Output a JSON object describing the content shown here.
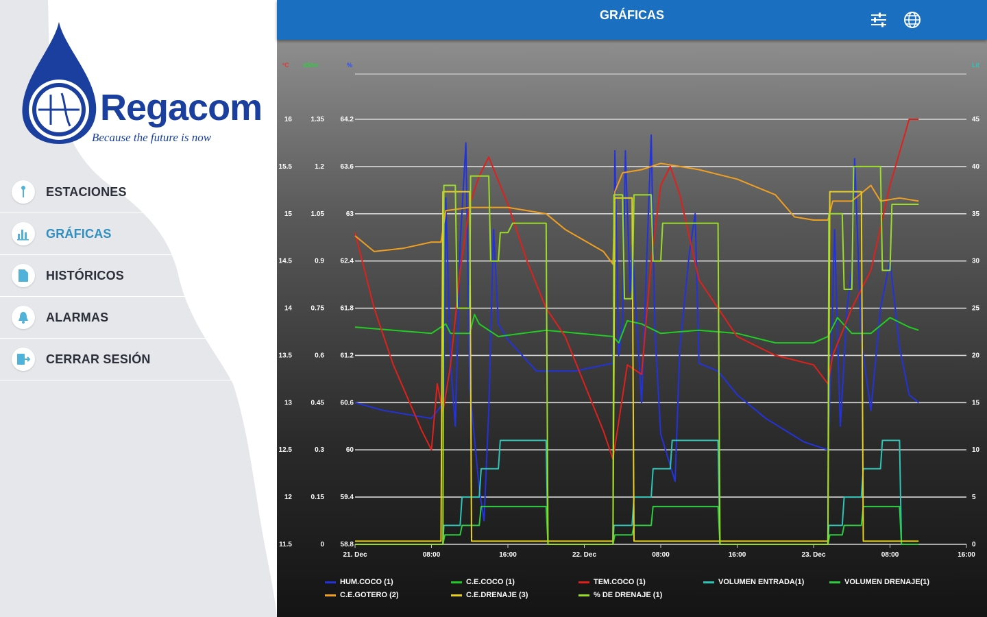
{
  "app": {
    "brand_name": "Regacom",
    "slogan": "Because the future is now"
  },
  "header": {
    "title": "GRÁFICAS",
    "icons": [
      "filter-sliders-icon",
      "globe-icon"
    ]
  },
  "sidebar": {
    "items": [
      {
        "label": "ESTACIONES",
        "icon": "antenna-icon",
        "active": false
      },
      {
        "label": "GRÁFICAS",
        "icon": "bar-chart-icon",
        "active": true
      },
      {
        "label": "HISTÓRICOS",
        "icon": "document-icon",
        "active": false
      },
      {
        "label": "ALARMAS",
        "icon": "bell-icon",
        "active": false
      },
      {
        "label": "CERRAR SESIÓN",
        "icon": "logout-icon",
        "active": false
      }
    ]
  },
  "colors": {
    "accent": "#1a6fc0",
    "active_menu": "#2e8fc0"
  },
  "chart_data": {
    "type": "line",
    "axes_units": [
      {
        "label": "ºC",
        "color": "#e53935"
      },
      {
        "label": "dS/m",
        "color": "#2ecc40"
      },
      {
        "label": "%",
        "color": "#3050ff"
      },
      {
        "label": "Lit",
        "color": "#2ec4b6"
      }
    ],
    "y_axis_temp": [
      "16",
      "15.5",
      "15",
      "14.5",
      "14",
      "13.5",
      "13",
      "12.5",
      "12",
      "11.5"
    ],
    "y_axis_ce": [
      "1.35",
      "1.2",
      "1.05",
      "0.9",
      "0.75",
      "0.6",
      "0.45",
      "0.3",
      "0.15",
      "0"
    ],
    "y_axis_hum": [
      "64.2",
      "63.6",
      "63",
      "62.4",
      "61.8",
      "61.2",
      "60.6",
      "60",
      "59.4",
      "58.8"
    ],
    "y_axis_vol": [
      "45",
      "40",
      "35",
      "30",
      "25",
      "20",
      "15",
      "10",
      "5",
      "0"
    ],
    "x_ticks": [
      "21. Dec",
      "08:00",
      "16:00",
      "22. Dec",
      "08:00",
      "16:00",
      "23. Dec",
      "08:00",
      "16:00"
    ],
    "x_range_hours": [
      0,
      64
    ],
    "grid": true,
    "legend_position": "bottom",
    "series": [
      {
        "name": "HUM.COCO (1)",
        "color": "#2233dd",
        "axis": "hum",
        "points": [
          [
            0,
            60.6
          ],
          [
            3,
            60.5
          ],
          [
            8,
            60.4
          ],
          [
            9.3,
            60.6
          ],
          [
            9.5,
            63.2
          ],
          [
            10,
            61.1
          ],
          [
            10.5,
            60.3
          ],
          [
            11,
            62.6
          ],
          [
            11.6,
            63.9
          ],
          [
            12,
            60.8
          ],
          [
            13,
            59.5
          ],
          [
            13.5,
            59.1
          ],
          [
            14,
            60.5
          ],
          [
            14.5,
            62.8
          ],
          [
            15,
            61.6
          ],
          [
            16,
            61.4
          ],
          [
            19,
            61.0
          ],
          [
            23,
            61.0
          ],
          [
            27,
            61.1
          ],
          [
            27.2,
            63.8
          ],
          [
            27.6,
            61.2
          ],
          [
            28,
            61.6
          ],
          [
            28.3,
            63.8
          ],
          [
            28.8,
            62.0
          ],
          [
            29,
            62.6
          ],
          [
            30,
            60.6
          ],
          [
            31,
            64.0
          ],
          [
            31.4,
            61.5
          ],
          [
            32,
            60.2
          ],
          [
            33.5,
            59.6
          ],
          [
            34,
            61.3
          ],
          [
            35,
            62.5
          ],
          [
            35.6,
            63.0
          ],
          [
            36,
            61.1
          ],
          [
            38,
            61.0
          ],
          [
            40,
            60.7
          ],
          [
            43,
            60.4
          ],
          [
            47,
            60.1
          ],
          [
            49.5,
            60.0
          ],
          [
            49.8,
            61.0
          ],
          [
            50.2,
            62.8
          ],
          [
            50.5,
            61.5
          ],
          [
            50.8,
            60.3
          ],
          [
            51.5,
            61.8
          ],
          [
            52,
            62.3
          ],
          [
            52.3,
            63.7
          ],
          [
            53,
            61.4
          ],
          [
            54,
            60.5
          ],
          [
            55,
            61.8
          ],
          [
            56,
            62.4
          ],
          [
            57,
            61.3
          ],
          [
            58,
            60.7
          ],
          [
            59,
            60.6
          ]
        ]
      },
      {
        "name": "C.E.COCO (1)",
        "color": "#22cc22",
        "axis": "ce",
        "points": [
          [
            0,
            0.69
          ],
          [
            4,
            0.68
          ],
          [
            8,
            0.67
          ],
          [
            9.5,
            0.7
          ],
          [
            10,
            0.67
          ],
          [
            12,
            0.67
          ],
          [
            12.5,
            0.73
          ],
          [
            13,
            0.7
          ],
          [
            15,
            0.66
          ],
          [
            20,
            0.68
          ],
          [
            27,
            0.66
          ],
          [
            27.6,
            0.64
          ],
          [
            28.5,
            0.71
          ],
          [
            30,
            0.7
          ],
          [
            32,
            0.67
          ],
          [
            36,
            0.68
          ],
          [
            40,
            0.67
          ],
          [
            44,
            0.64
          ],
          [
            48,
            0.64
          ],
          [
            49.5,
            0.66
          ],
          [
            50.5,
            0.72
          ],
          [
            52,
            0.67
          ],
          [
            54,
            0.67
          ],
          [
            56,
            0.72
          ],
          [
            58,
            0.69
          ],
          [
            59,
            0.68
          ]
        ]
      },
      {
        "name": "TEM.COCO (1)",
        "color": "#e0201a",
        "axis": "temp",
        "points": [
          [
            0,
            14.8
          ],
          [
            2,
            14.0
          ],
          [
            4,
            13.4
          ],
          [
            7,
            12.7
          ],
          [
            8,
            12.5
          ],
          [
            8.6,
            13.2
          ],
          [
            9.2,
            12.9
          ],
          [
            10,
            13.4
          ],
          [
            11,
            14.4
          ],
          [
            12,
            15.1
          ],
          [
            13,
            15.4
          ],
          [
            14,
            15.6
          ],
          [
            16,
            15.1
          ],
          [
            18,
            14.5
          ],
          [
            20,
            14.0
          ],
          [
            22,
            13.7
          ],
          [
            24,
            13.2
          ],
          [
            26,
            12.7
          ],
          [
            27,
            12.4
          ],
          [
            27.6,
            12.8
          ],
          [
            28.5,
            13.4
          ],
          [
            30,
            13.3
          ],
          [
            31,
            14.5
          ],
          [
            32,
            15.3
          ],
          [
            33,
            15.5
          ],
          [
            34,
            15.2
          ],
          [
            36,
            14.3
          ],
          [
            38,
            14.0
          ],
          [
            40,
            13.7
          ],
          [
            44,
            13.5
          ],
          [
            48,
            13.4
          ],
          [
            49.5,
            13.2
          ],
          [
            50,
            13.5
          ],
          [
            52,
            14.0
          ],
          [
            54,
            14.4
          ],
          [
            56,
            15.3
          ],
          [
            58,
            16.0
          ],
          [
            59,
            16.0
          ]
        ]
      },
      {
        "name": "VOLUMEN ENTRADA(1)",
        "color": "#2ec4b6",
        "axis": "vol",
        "points": [
          [
            0,
            0
          ],
          [
            9.2,
            0
          ],
          [
            9.3,
            2
          ],
          [
            11,
            2
          ],
          [
            11.2,
            5
          ],
          [
            13,
            5
          ],
          [
            13.2,
            8
          ],
          [
            15,
            8
          ],
          [
            15.2,
            11
          ],
          [
            20,
            11
          ],
          [
            20.2,
            0
          ],
          [
            27,
            0
          ],
          [
            27.1,
            2
          ],
          [
            29,
            2
          ],
          [
            29.2,
            5
          ],
          [
            31,
            5
          ],
          [
            31.2,
            8
          ],
          [
            33,
            8
          ],
          [
            33.2,
            11
          ],
          [
            38,
            11
          ],
          [
            38.2,
            0
          ],
          [
            49.5,
            0
          ],
          [
            49.6,
            2
          ],
          [
            51,
            2
          ],
          [
            51.2,
            5
          ],
          [
            53,
            5
          ],
          [
            53.2,
            8
          ],
          [
            55,
            8
          ],
          [
            55.2,
            11
          ],
          [
            57,
            11
          ],
          [
            57.2,
            0
          ],
          [
            59,
            0
          ]
        ]
      },
      {
        "name": "VOLUMEN DRENAJE(1)",
        "color": "#2ecc40",
        "axis": "vol",
        "points": [
          [
            0,
            0
          ],
          [
            9.2,
            0
          ],
          [
            9.4,
            1
          ],
          [
            11,
            1
          ],
          [
            11.2,
            2
          ],
          [
            13,
            2
          ],
          [
            13.2,
            4
          ],
          [
            20,
            4
          ],
          [
            20.2,
            0
          ],
          [
            27,
            0
          ],
          [
            27.2,
            1
          ],
          [
            29,
            1
          ],
          [
            29.2,
            2
          ],
          [
            31,
            2
          ],
          [
            31.2,
            4
          ],
          [
            38,
            4
          ],
          [
            38.2,
            0
          ],
          [
            49.5,
            0
          ],
          [
            49.7,
            1
          ],
          [
            51,
            1
          ],
          [
            51.2,
            2
          ],
          [
            53,
            2
          ],
          [
            53.2,
            4
          ],
          [
            57,
            4
          ],
          [
            57.2,
            0
          ],
          [
            59,
            0
          ]
        ]
      },
      {
        "name": "C.E.GOTERO (2)",
        "color": "#f0a020",
        "axis": "ce",
        "points": [
          [
            0,
            0.98
          ],
          [
            2,
            0.93
          ],
          [
            5,
            0.94
          ],
          [
            8,
            0.96
          ],
          [
            9,
            0.96
          ],
          [
            9.5,
            1.06
          ],
          [
            12,
            1.07
          ],
          [
            16,
            1.07
          ],
          [
            20,
            1.05
          ],
          [
            22,
            1.0
          ],
          [
            26,
            0.93
          ],
          [
            27,
            0.89
          ],
          [
            27.2,
            1.12
          ],
          [
            28,
            1.18
          ],
          [
            30,
            1.19
          ],
          [
            32,
            1.21
          ],
          [
            34,
            1.2
          ],
          [
            36,
            1.19
          ],
          [
            40,
            1.16
          ],
          [
            44,
            1.11
          ],
          [
            46,
            1.04
          ],
          [
            48,
            1.03
          ],
          [
            49.5,
            1.03
          ],
          [
            50,
            1.09
          ],
          [
            52,
            1.09
          ],
          [
            54,
            1.14
          ],
          [
            55,
            1.09
          ],
          [
            57,
            1.1
          ],
          [
            59,
            1.09
          ]
        ]
      },
      {
        "name": "C.E.DRENAJE (3)",
        "color": "#e8d020",
        "axis": "ce",
        "points": [
          [
            0,
            0.01
          ],
          [
            9,
            0.01
          ],
          [
            9.2,
            1.12
          ],
          [
            12,
            1.12
          ],
          [
            12.2,
            0.01
          ],
          [
            27,
            0.01
          ],
          [
            27.2,
            1.1
          ],
          [
            29,
            1.1
          ],
          [
            29.2,
            0.01
          ],
          [
            49.5,
            0.01
          ],
          [
            49.7,
            1.12
          ],
          [
            53,
            1.12
          ],
          [
            53.2,
            0.01
          ],
          [
            59,
            0.01
          ]
        ]
      },
      {
        "name": "% DE DRENAJE (1)",
        "color": "#9bdc28",
        "axis": "vol",
        "points": [
          [
            0,
            0
          ],
          [
            9.2,
            0
          ],
          [
            9.3,
            38
          ],
          [
            10.5,
            38
          ],
          [
            10.7,
            25
          ],
          [
            12,
            25
          ],
          [
            12.1,
            39
          ],
          [
            14,
            39
          ],
          [
            14.2,
            30
          ],
          [
            15,
            30
          ],
          [
            15.2,
            33
          ],
          [
            16,
            33
          ],
          [
            16.5,
            34
          ],
          [
            20,
            34
          ],
          [
            20.2,
            0
          ],
          [
            27,
            0
          ],
          [
            27.1,
            37
          ],
          [
            28,
            37
          ],
          [
            28.2,
            26
          ],
          [
            29,
            26
          ],
          [
            29.2,
            37
          ],
          [
            31,
            37
          ],
          [
            31.2,
            30
          ],
          [
            32,
            30
          ],
          [
            32.2,
            34
          ],
          [
            38,
            34
          ],
          [
            38.2,
            0
          ],
          [
            49.5,
            0
          ],
          [
            49.6,
            35
          ],
          [
            51,
            35
          ],
          [
            51.2,
            27
          ],
          [
            52,
            27
          ],
          [
            52.2,
            40
          ],
          [
            55,
            40
          ],
          [
            55.2,
            29
          ],
          [
            56,
            29
          ],
          [
            56.2,
            36
          ],
          [
            59,
            36
          ]
        ]
      }
    ]
  }
}
